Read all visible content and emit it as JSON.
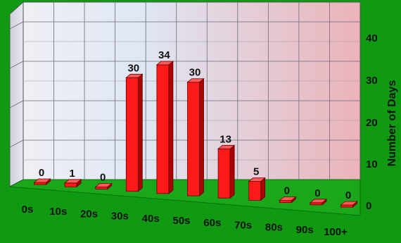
{
  "chart_data": {
    "type": "bar",
    "categories": [
      "0s",
      "10s",
      "20s",
      "30s",
      "40s",
      "50s",
      "60s",
      "70s",
      "80s",
      "90s",
      "100+"
    ],
    "values": [
      0,
      1,
      0,
      30,
      34,
      30,
      13,
      5,
      0,
      0,
      0
    ],
    "data_labels": [
      "0",
      "1",
      "0",
      "30",
      "34",
      "30",
      "13",
      "5",
      "0",
      "0",
      "0"
    ],
    "yticks": [
      "0",
      "10",
      "20",
      "30",
      "40"
    ],
    "ylabel": "Number of Days",
    "ylim": [
      0,
      45
    ],
    "grid": true,
    "legend": "none",
    "colors": {
      "background": "#0f9a12",
      "bar_face": "#ff1a1a",
      "bar_top": "#ff5a5a",
      "bar_side": "#a90000",
      "floor": "#1aa81a",
      "wall_left": "#e4e4ee",
      "wall_right": "#e8b8be",
      "grid": "#6b6b7b",
      "text": "#111111"
    }
  }
}
